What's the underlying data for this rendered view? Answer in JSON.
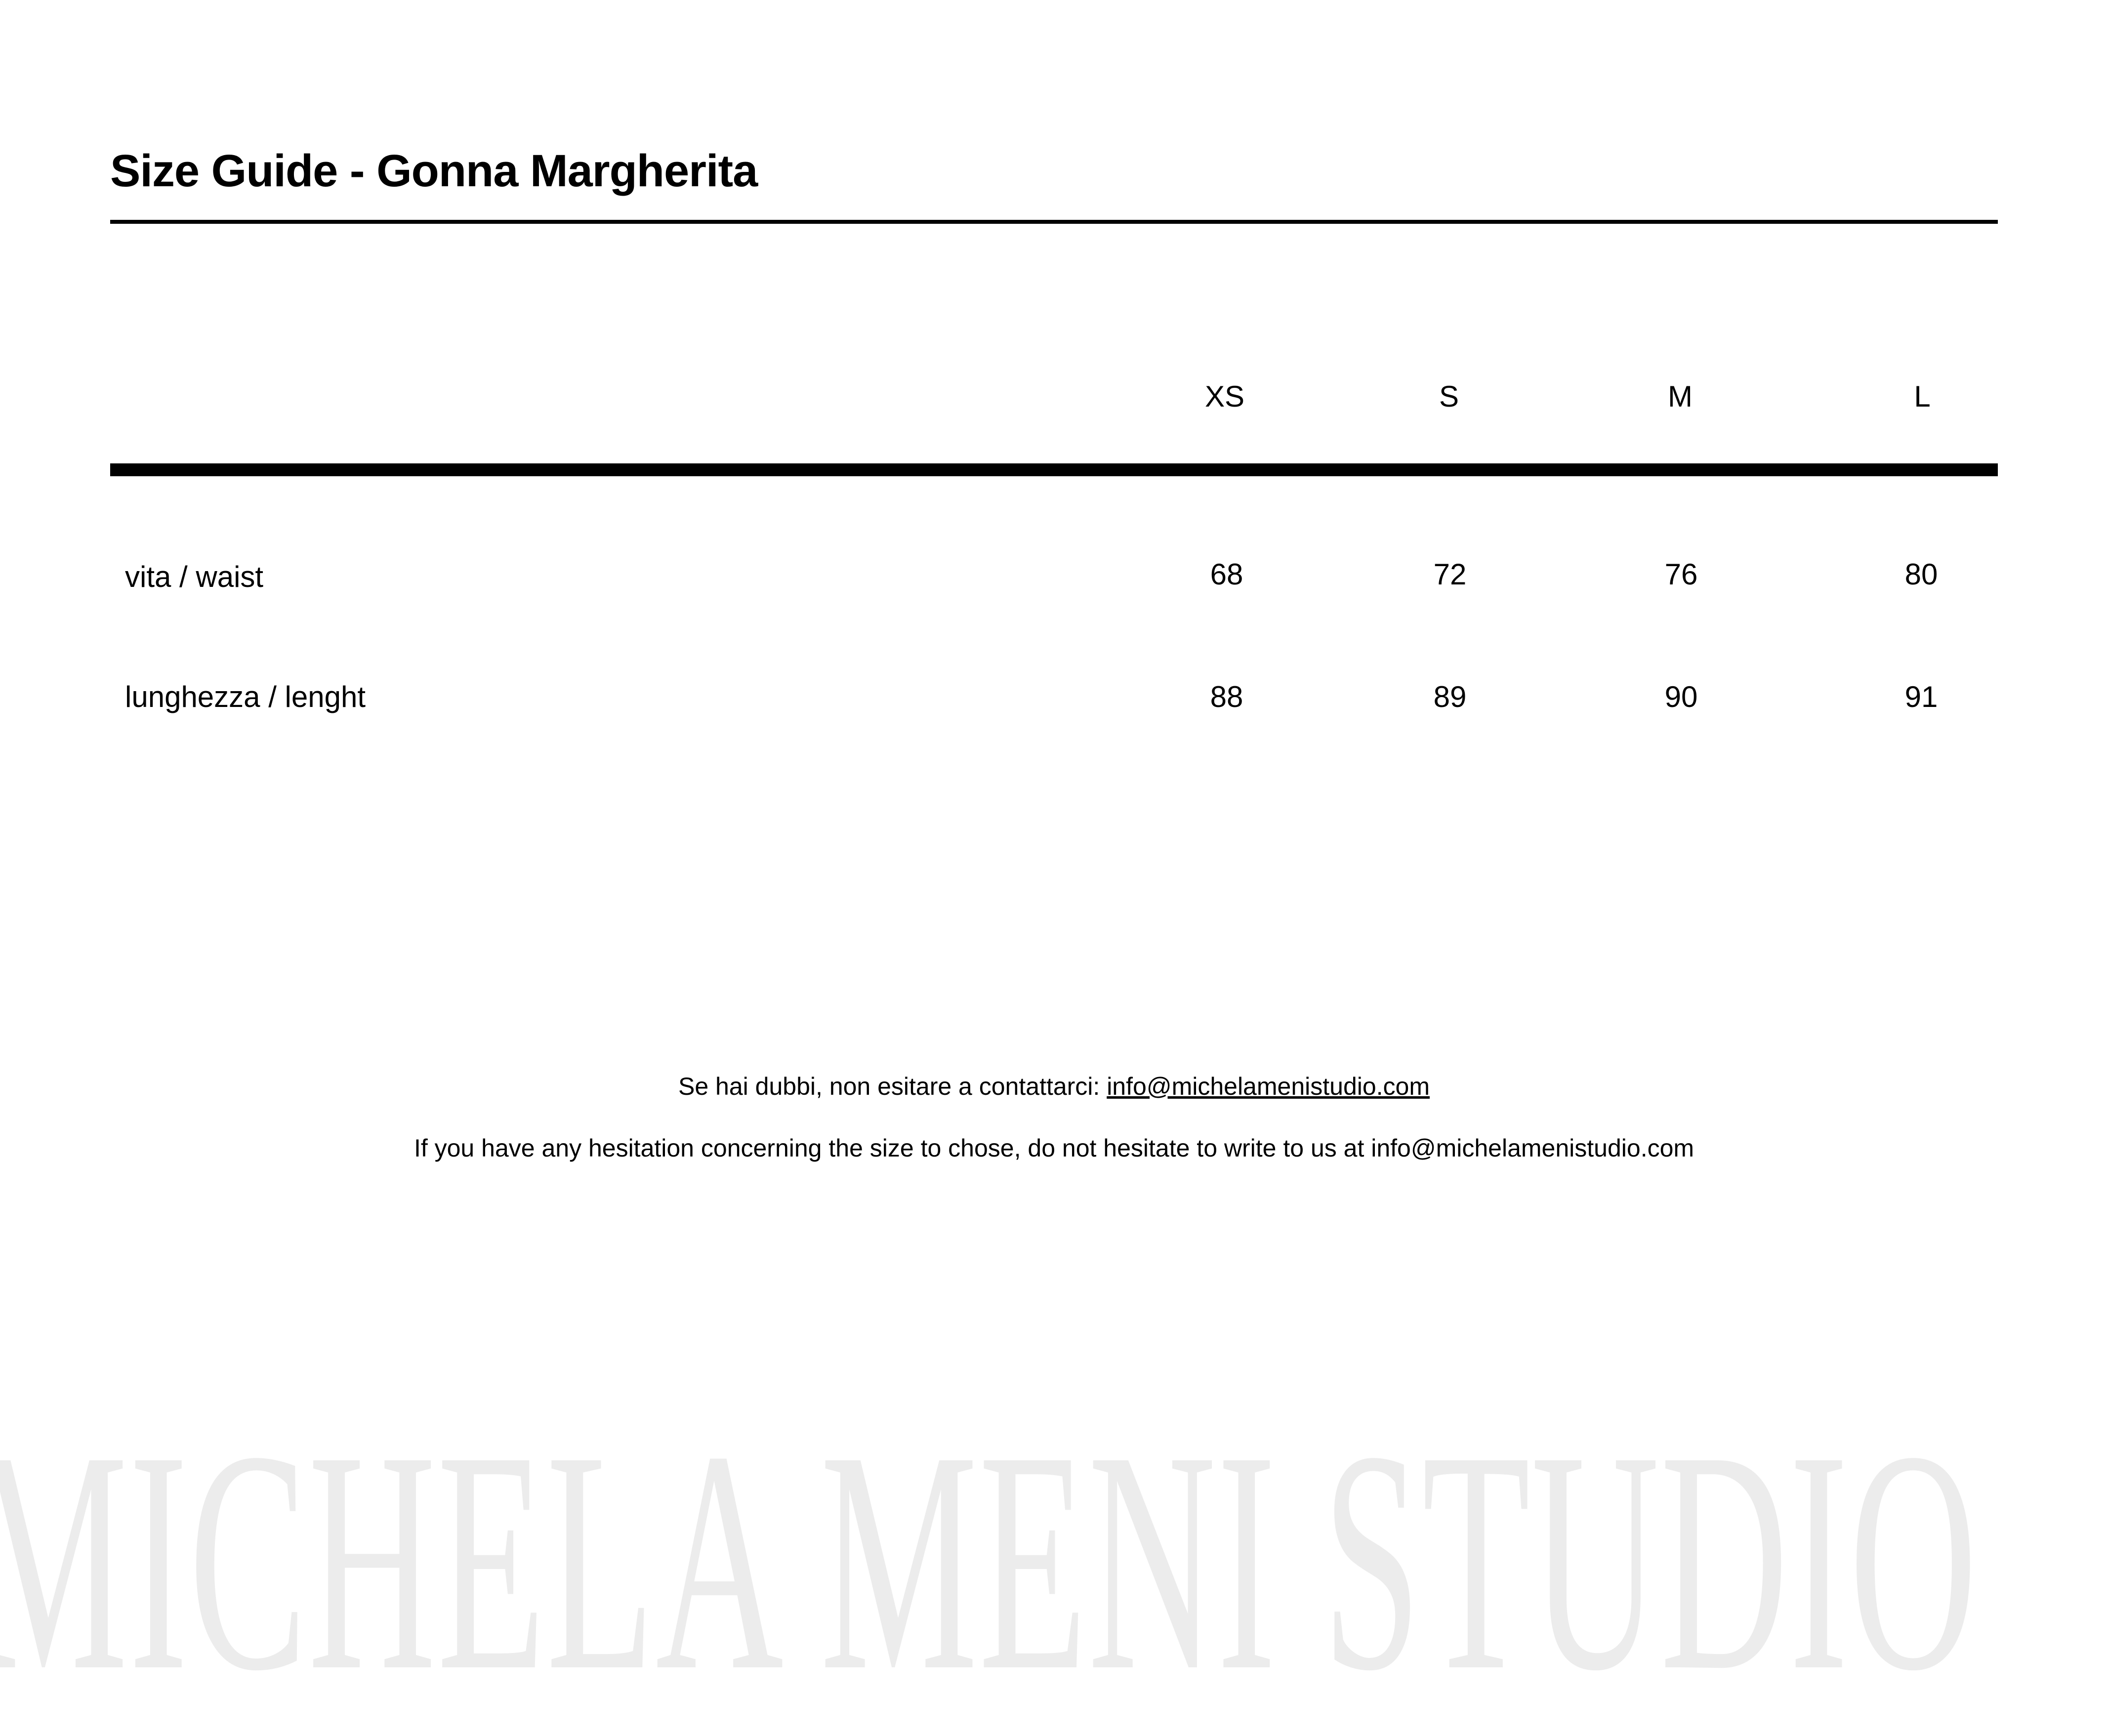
{
  "title": "Size Guide - Gonna Margherita",
  "table": {
    "columns": [
      "XS",
      "S",
      "M",
      "L"
    ],
    "rows": [
      {
        "label": "vita / waist",
        "values": [
          "68",
          "72",
          "76",
          "80"
        ]
      },
      {
        "label": "lunghezza / lenght",
        "values": [
          "88",
          "89",
          "90",
          "91"
        ]
      }
    ]
  },
  "footer": {
    "line1_text": "Se hai dubbi, non esitare a contattarci: ",
    "line1_email": "info@michelamenistudio.com",
    "line2_text": "If you have any hesitation concerning the size to chose, do not hesitate to write to us at info@michelamenistudio.com"
  },
  "watermark": "MICHELA MENI STUDIO",
  "colors": {
    "text": "#000000",
    "watermark": "#ececec",
    "background": "#ffffff"
  }
}
